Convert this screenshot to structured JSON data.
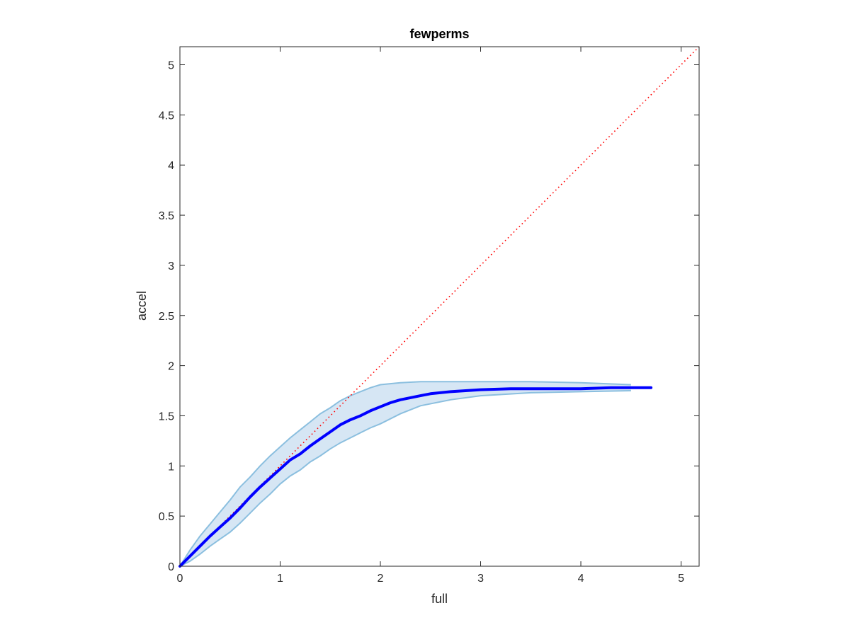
{
  "chart_data": {
    "type": "line",
    "title": "fewperms",
    "xlabel": "full",
    "ylabel": "accel",
    "xlim": [
      0,
      5.18
    ],
    "ylim": [
      0,
      5.18
    ],
    "grid": false,
    "box": true,
    "x_ticks": [
      "0",
      "1",
      "2",
      "3",
      "4",
      "5"
    ],
    "y_ticks": [
      "0",
      "0.5",
      "1",
      "1.5",
      "2",
      "2.5",
      "3",
      "3.5",
      "4",
      "4.5",
      "5"
    ],
    "colors": {
      "mean_line": "#0000ff",
      "band_fill": "#d6e6f4",
      "band_edge": "#8bbfdf",
      "reference_line": "#ff0000",
      "axes": "#262626"
    },
    "series": [
      {
        "kind": "mean",
        "x": [
          0,
          0.1,
          0.2,
          0.3,
          0.4,
          0.5,
          0.6,
          0.7,
          0.8,
          0.9,
          1.0,
          1.1,
          1.2,
          1.3,
          1.4,
          1.5,
          1.6,
          1.7,
          1.8,
          1.9,
          2.0,
          2.1,
          2.2,
          2.3,
          2.4,
          2.5,
          2.7,
          3.0,
          3.3,
          3.6,
          4.0,
          4.3,
          4.6,
          4.7
        ],
        "y": [
          0,
          0.1,
          0.2,
          0.3,
          0.39,
          0.48,
          0.58,
          0.69,
          0.79,
          0.88,
          0.97,
          1.06,
          1.12,
          1.2,
          1.27,
          1.34,
          1.41,
          1.46,
          1.5,
          1.55,
          1.59,
          1.63,
          1.66,
          1.68,
          1.7,
          1.72,
          1.74,
          1.76,
          1.77,
          1.77,
          1.77,
          1.78,
          1.78,
          1.78
        ]
      },
      {
        "kind": "band-upper",
        "x": [
          0,
          0.1,
          0.2,
          0.3,
          0.4,
          0.5,
          0.6,
          0.7,
          0.8,
          0.9,
          1.0,
          1.1,
          1.2,
          1.3,
          1.4,
          1.5,
          1.6,
          1.7,
          1.8,
          1.9,
          2.0,
          2.2,
          2.4,
          2.7,
          3.0,
          3.5,
          4.0,
          4.5
        ],
        "y": [
          0,
          0.16,
          0.3,
          0.42,
          0.54,
          0.66,
          0.79,
          0.89,
          1.0,
          1.1,
          1.19,
          1.28,
          1.36,
          1.44,
          1.52,
          1.58,
          1.65,
          1.7,
          1.74,
          1.78,
          1.81,
          1.83,
          1.84,
          1.84,
          1.84,
          1.84,
          1.83,
          1.81
        ]
      },
      {
        "kind": "band-lower",
        "x": [
          0,
          0.1,
          0.2,
          0.3,
          0.4,
          0.5,
          0.6,
          0.7,
          0.8,
          0.9,
          1.0,
          1.1,
          1.2,
          1.3,
          1.4,
          1.5,
          1.6,
          1.7,
          1.8,
          1.9,
          2.0,
          2.2,
          2.4,
          2.7,
          3.0,
          3.5,
          4.0,
          4.5
        ],
        "y": [
          0,
          0.05,
          0.12,
          0.2,
          0.27,
          0.34,
          0.43,
          0.53,
          0.63,
          0.72,
          0.82,
          0.9,
          0.96,
          1.04,
          1.1,
          1.17,
          1.23,
          1.28,
          1.33,
          1.38,
          1.42,
          1.52,
          1.6,
          1.66,
          1.7,
          1.73,
          1.74,
          1.75
        ]
      },
      {
        "kind": "reference",
        "x": [
          0,
          5.18
        ],
        "y": [
          0,
          5.18
        ]
      }
    ]
  }
}
